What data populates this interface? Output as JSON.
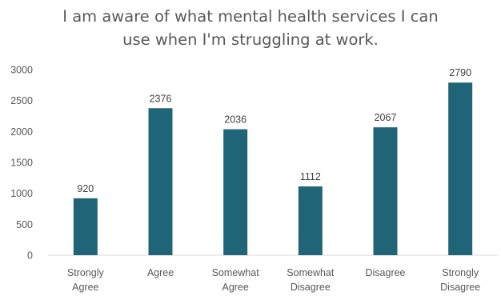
{
  "chart_data": {
    "type": "bar",
    "title_lines": [
      "I am aware of what mental health services I can",
      "use when I'm struggling at work."
    ],
    "categories": [
      [
        "Strongly",
        "Agree"
      ],
      [
        "Agree"
      ],
      [
        "Somewhat",
        "Agree"
      ],
      [
        "Somewhat",
        "Disagree"
      ],
      [
        "Disagree"
      ],
      [
        "Strongly",
        "Disagree"
      ]
    ],
    "values": [
      920,
      2376,
      2036,
      1112,
      2067,
      2790
    ],
    "ylim": [
      0,
      3000
    ],
    "yticks": [
      0,
      500,
      1000,
      1500,
      2000,
      2500,
      3000
    ],
    "grid": false,
    "data_labels": true,
    "bar_color": "#1f6577",
    "xlabel": "",
    "ylabel": ""
  }
}
